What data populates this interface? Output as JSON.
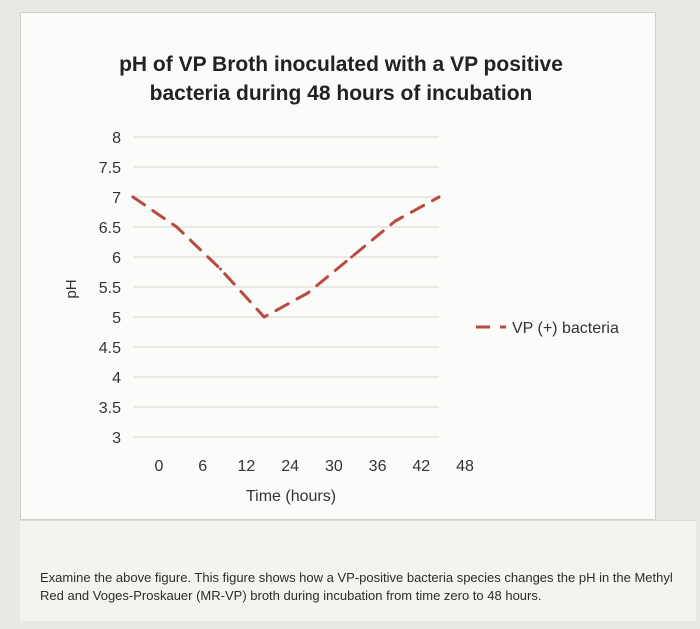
{
  "chart_data": {
    "type": "line",
    "title_lines": [
      "pH of VP Broth inoculated with a VP positive",
      "bacteria during 48 hours of incubation"
    ],
    "xlabel": "Time (hours)",
    "ylabel": "pH",
    "x": [
      0,
      6,
      12,
      24,
      30,
      36,
      42,
      48
    ],
    "x_tick_labels": [
      "0",
      "6",
      "12",
      "24",
      "30",
      "36",
      "42",
      "48"
    ],
    "y_ticks": [
      3,
      3.5,
      4,
      4.5,
      5,
      5.5,
      6,
      6.5,
      7,
      7.5,
      8
    ],
    "y_tick_labels": [
      "3",
      "3.5",
      "4",
      "4.5",
      "5",
      "5.5",
      "6",
      "6.5",
      "7",
      "7.5",
      "8"
    ],
    "ylim": [
      3,
      8
    ],
    "grid": true,
    "legend_position": "right",
    "series": [
      {
        "name": "VP (+) bacteria",
        "values": [
          7.0,
          6.5,
          5.8,
          5.0,
          5.4,
          6.0,
          6.6,
          7.0
        ],
        "color": "#b84a3f",
        "line_style": "dashed"
      }
    ]
  },
  "question": {
    "text": "Examine the above figure. This figure shows how a VP-positive bacteria species changes the pH in the Methyl Red and Voges-Proskauer (MR-VP) broth during incubation from time zero to 48 hours."
  }
}
